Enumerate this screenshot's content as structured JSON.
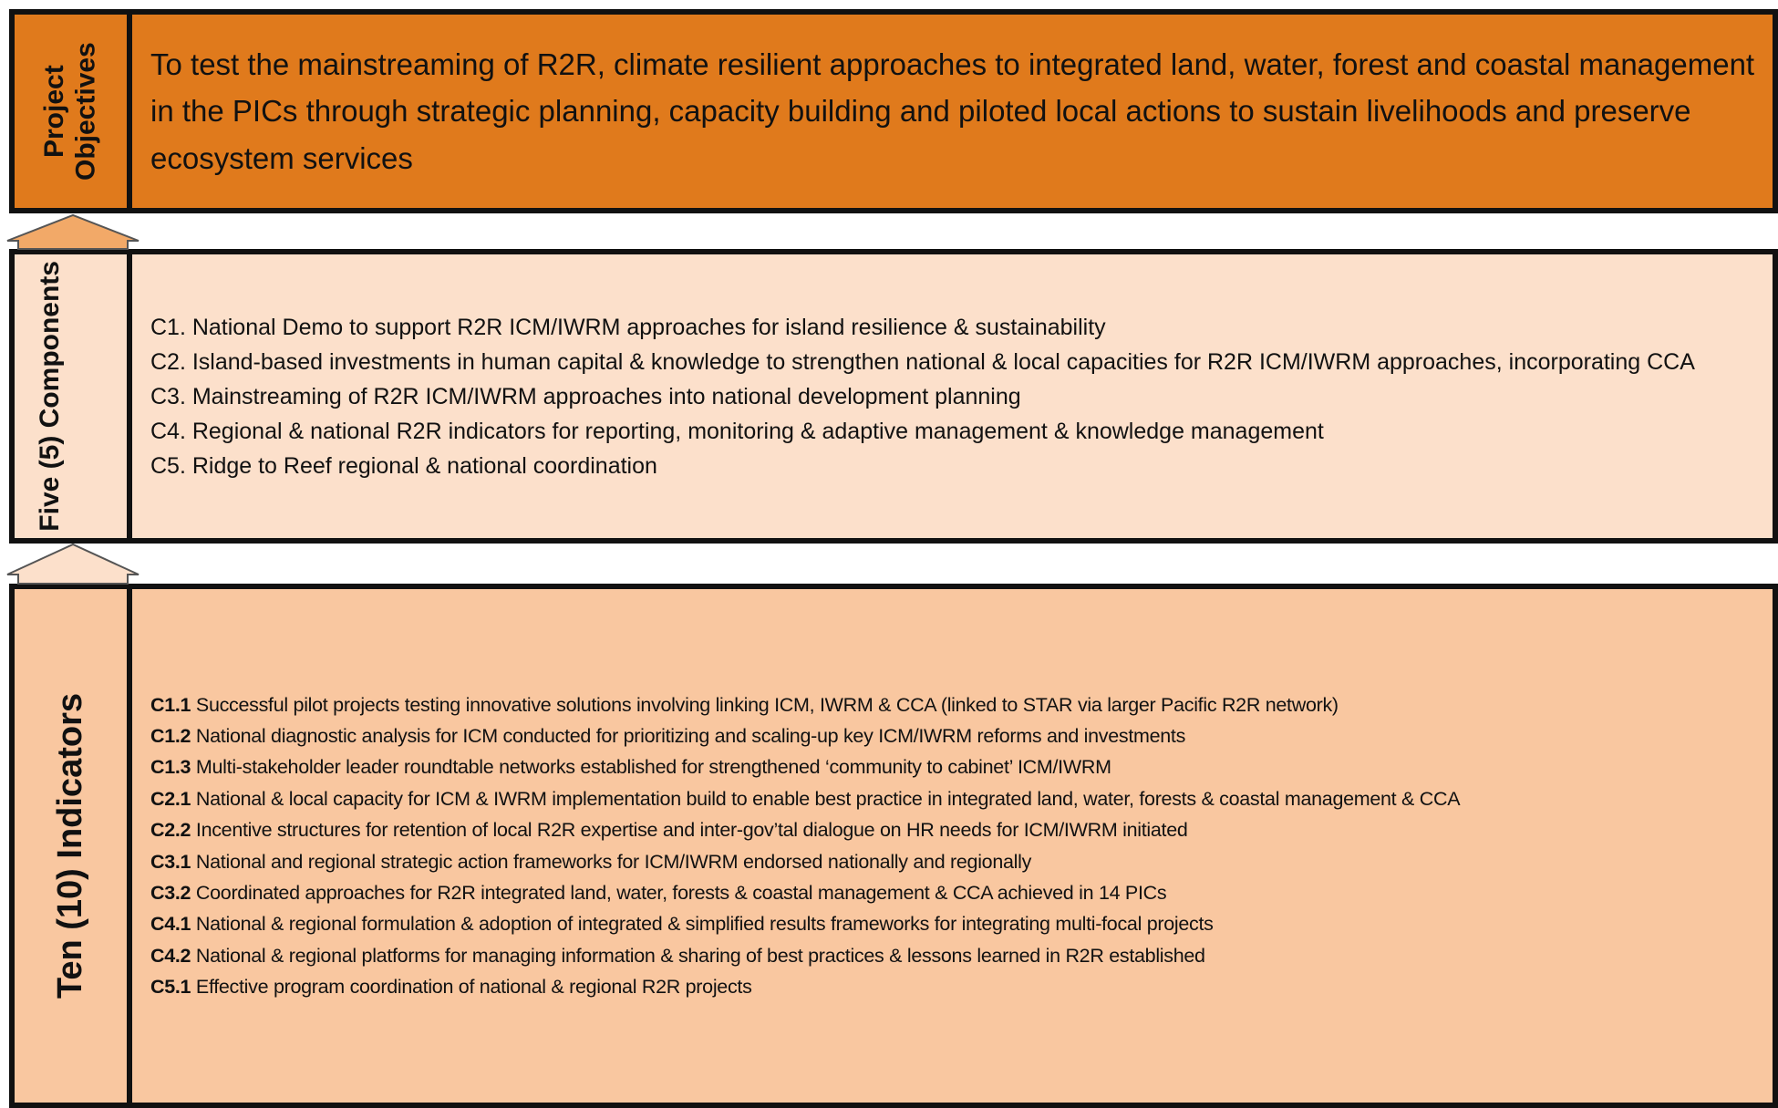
{
  "objectives": {
    "label": "Project Objectives",
    "text": "To test the mainstreaming of R2R, climate resilient approaches to integrated land, water, forest and coastal management in the PICs through strategic planning, capacity building and piloted local actions to sustain livelihoods and preserve ecosystem services"
  },
  "components": {
    "label": "Five (5) Components",
    "items": [
      "C1. National Demo to support R2R ICM/IWRM approaches for island resilience & sustainability",
      "C2. Island-based investments in human capital & knowledge to strengthen national & local capacities for R2R ICM/IWRM approaches, incorporating CCA",
      "C3. Mainstreaming of R2R ICM/IWRM approaches into national development planning",
      "C4. Regional & national R2R indicators for reporting, monitoring & adaptive management & knowledge management",
      "C5. Ridge to Reef regional & national coordination"
    ]
  },
  "indicators": {
    "label": "Ten (10) Indicators",
    "items": [
      {
        "code": "C1.1",
        "text": "Successful pilot projects testing innovative solutions involving linking ICM, IWRM & CCA (linked to STAR via larger Pacific R2R network)"
      },
      {
        "code": "C1.2",
        "text": "National diagnostic analysis for ICM conducted for prioritizing and scaling-up key ICM/IWRM reforms and investments"
      },
      {
        "code": "C1.3",
        "text": "Multi-stakeholder leader roundtable networks established for strengthened ‘community to cabinet’ ICM/IWRM"
      },
      {
        "code": "C2.1",
        "text": "National & local capacity for ICM & IWRM implementation build to enable best practice in integrated land, water, forests & coastal management & CCA"
      },
      {
        "code": "C2.2",
        "text": "Incentive structures for retention of local R2R expertise and inter-gov’tal dialogue on HR needs for ICM/IWRM initiated"
      },
      {
        "code": "C3.1",
        "text": "National and regional strategic action frameworks for ICM/IWRM endorsed nationally and regionally"
      },
      {
        "code": "C3.2",
        "text": "Coordinated approaches for R2R integrated land, water, forests & coastal management & CCA achieved in 14 PICs"
      },
      {
        "code": "C4.1",
        "text": "National & regional formulation & adoption of integrated & simplified results frameworks for integrating multi-focal projects"
      },
      {
        "code": "C4.2",
        "text": "National & regional platforms for managing information & sharing of best practices & lessons learned in R2R established"
      },
      {
        "code": "C5.1",
        "text": "Effective program coordination of national & regional R2R projects"
      }
    ]
  }
}
